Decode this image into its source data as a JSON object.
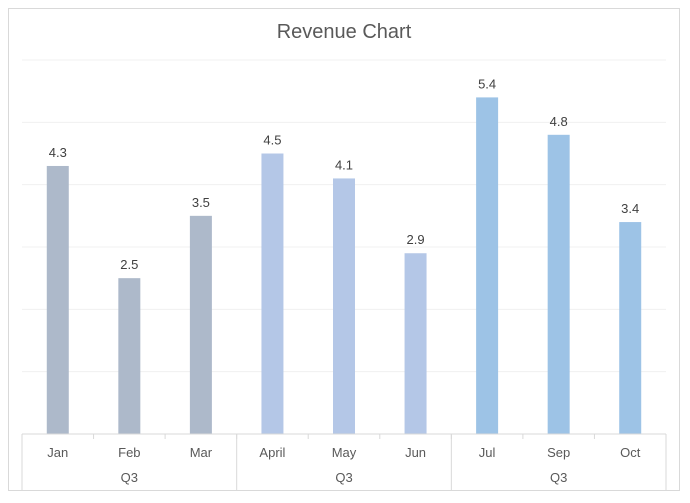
{
  "chart_data": {
    "type": "bar",
    "title": "Revenue Chart",
    "xlabel": "",
    "ylabel": "",
    "ylim": [
      0,
      6
    ],
    "grid": true,
    "legend": "none",
    "categories": [
      "Jan",
      "Feb",
      "Mar",
      "April",
      "May",
      "Jun",
      "Jul",
      "Sep",
      "Oct"
    ],
    "groups": [
      {
        "label": "Q3",
        "categories": [
          "Jan",
          "Feb",
          "Mar"
        ],
        "color": "#adb9ca"
      },
      {
        "label": "Q3",
        "categories": [
          "April",
          "May",
          "Jun"
        ],
        "color": "#b4c7e7"
      },
      {
        "label": "Q3",
        "categories": [
          "Jul",
          "Sep",
          "Oct"
        ],
        "color": "#9dc3e6"
      }
    ],
    "values": [
      4.3,
      2.5,
      3.5,
      4.5,
      4.1,
      2.9,
      5.4,
      4.8,
      3.4
    ],
    "data_labels": [
      "4.3",
      "2.5",
      "3.5",
      "4.5",
      "4.1",
      "2.9",
      "5.4",
      "4.8",
      "3.4"
    ]
  }
}
